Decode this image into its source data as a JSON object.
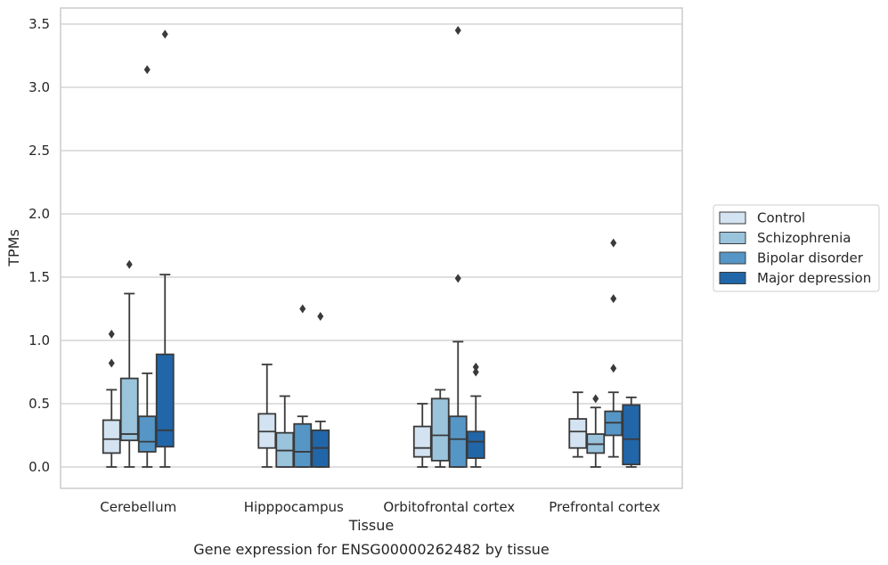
{
  "chart_data": {
    "type": "box",
    "xlabel": "Tissue",
    "ylabel": "TPMs",
    "caption": "Gene expression for ENSG00000262482 by tissue",
    "ylim": [
      -0.17,
      3.63
    ],
    "yticks": [
      "0.0",
      "0.5",
      "1.0",
      "1.5",
      "2.0",
      "2.5",
      "3.0",
      "3.5"
    ],
    "grid": "horizontal",
    "legend_position": "right",
    "categories": [
      "Cerebellum",
      "Hipppocampus",
      "Orbitofrontal cortex",
      "Prefrontal cortex"
    ],
    "series": [
      {
        "name": "Control",
        "color": "#d4e3f1",
        "boxes": [
          {
            "whislo": 0.0,
            "q1": 0.11,
            "med": 0.22,
            "q3": 0.37,
            "whishi": 0.61,
            "fliers": [
              0.82,
              1.05
            ]
          },
          {
            "whislo": 0.0,
            "q1": 0.15,
            "med": 0.28,
            "q3": 0.42,
            "whishi": 0.81,
            "fliers": []
          },
          {
            "whislo": 0.0,
            "q1": 0.08,
            "med": 0.15,
            "q3": 0.32,
            "whishi": 0.5,
            "fliers": []
          },
          {
            "whislo": 0.08,
            "q1": 0.15,
            "med": 0.28,
            "q3": 0.38,
            "whishi": 0.59,
            "fliers": []
          }
        ]
      },
      {
        "name": "Schizophrenia",
        "color": "#9ac3dc",
        "boxes": [
          {
            "whislo": 0.0,
            "q1": 0.21,
            "med": 0.26,
            "q3": 0.7,
            "whishi": 1.37,
            "fliers": [
              1.6
            ]
          },
          {
            "whislo": 0.0,
            "q1": 0.0,
            "med": 0.13,
            "q3": 0.27,
            "whishi": 0.56,
            "fliers": []
          },
          {
            "whislo": 0.0,
            "q1": 0.05,
            "med": 0.25,
            "q3": 0.54,
            "whishi": 0.61,
            "fliers": []
          },
          {
            "whislo": 0.0,
            "q1": 0.11,
            "med": 0.18,
            "q3": 0.26,
            "whishi": 0.47,
            "fliers": [
              0.54
            ]
          }
        ]
      },
      {
        "name": "Bipolar disorder",
        "color": "#5596c6",
        "boxes": [
          {
            "whislo": 0.0,
            "q1": 0.12,
            "med": 0.2,
            "q3": 0.4,
            "whishi": 0.74,
            "fliers": [
              3.14
            ]
          },
          {
            "whislo": 0.0,
            "q1": 0.0,
            "med": 0.12,
            "q3": 0.34,
            "whishi": 0.4,
            "fliers": [
              1.25
            ]
          },
          {
            "whislo": 0.0,
            "q1": 0.0,
            "med": 0.22,
            "q3": 0.4,
            "whishi": 0.99,
            "fliers": [
              1.49,
              3.45
            ]
          },
          {
            "whislo": 0.08,
            "q1": 0.25,
            "med": 0.35,
            "q3": 0.44,
            "whishi": 0.59,
            "fliers": [
              0.78,
              1.33,
              1.77
            ]
          }
        ]
      },
      {
        "name": "Major depression",
        "color": "#2166a8",
        "boxes": [
          {
            "whislo": 0.0,
            "q1": 0.16,
            "med": 0.29,
            "q3": 0.89,
            "whishi": 1.52,
            "fliers": [
              3.42
            ]
          },
          {
            "whislo": 0.0,
            "q1": 0.0,
            "med": 0.15,
            "q3": 0.29,
            "whishi": 0.36,
            "fliers": [
              1.19
            ]
          },
          {
            "whislo": 0.0,
            "q1": 0.07,
            "med": 0.2,
            "q3": 0.28,
            "whishi": 0.56,
            "fliers": [
              0.75,
              0.79
            ]
          },
          {
            "whislo": 0.0,
            "q1": 0.02,
            "med": 0.22,
            "q3": 0.49,
            "whishi": 0.55,
            "fliers": []
          }
        ]
      }
    ]
  }
}
